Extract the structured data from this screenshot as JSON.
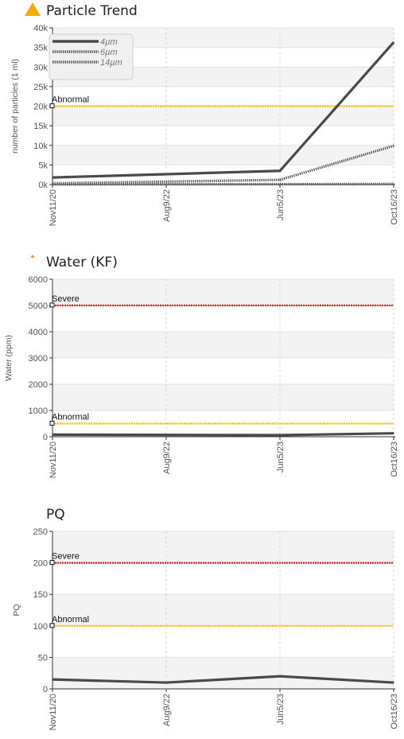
{
  "colors": {
    "abnormal": "#f5c400",
    "severe": "#e0201b",
    "series": "#4a4a4a",
    "band": "#f3f3f3",
    "warning": "#f2ad00"
  },
  "chart_data": [
    {
      "type": "line",
      "title": "Particle Trend",
      "title_icon": "warning-triangle-icon",
      "ylabel": "number of particles (1 ml)",
      "ylim": [
        0,
        40000
      ],
      "yticks": [
        0,
        5000,
        10000,
        15000,
        20000,
        25000,
        30000,
        35000,
        40000
      ],
      "ytick_labels": [
        "0k",
        "5k",
        "10k",
        "15k",
        "20k",
        "25k",
        "30k",
        "35k",
        "40k"
      ],
      "categories": [
        "Nov11/20",
        "Aug9/22",
        "Jun5/23",
        "Oct16/23"
      ],
      "x": [
        "2020-11-11",
        "2022-08-09",
        "2023-06-05",
        "2023-10-16"
      ],
      "series": [
        {
          "name": "4µm",
          "style": "solid",
          "points": [
            [
              "2020-11-11",
              1800
            ],
            [
              "2023-06-05",
              3500
            ],
            [
              "2023-10-16",
              36300
            ]
          ]
        },
        {
          "name": "6µm",
          "style": "dotted",
          "points": [
            [
              "2020-11-11",
              300
            ],
            [
              "2023-06-05",
              1200
            ],
            [
              "2023-10-16",
              9900
            ]
          ]
        },
        {
          "name": "14µm",
          "style": "dotted",
          "points": [
            [
              "2020-11-11",
              50
            ],
            [
              "2023-06-05",
              100
            ],
            [
              "2023-10-16",
              150
            ]
          ]
        }
      ],
      "thresholds": [
        {
          "label": "Abnormal",
          "value": 20000,
          "level": "abnormal"
        }
      ],
      "legend": "top-left",
      "grid": true
    },
    {
      "type": "line",
      "title": "Water (KF)",
      "ylabel": "Water (ppm)",
      "ylim": [
        0,
        6000
      ],
      "yticks": [
        0,
        1000,
        2000,
        3000,
        4000,
        5000,
        6000
      ],
      "ytick_labels": [
        "0",
        "1000",
        "2000",
        "3000",
        "4000",
        "5000",
        "6000"
      ],
      "categories": [
        "Nov11/20",
        "Aug9/22",
        "Jun5/23",
        "Oct16/23"
      ],
      "x": [
        "2020-11-11",
        "2022-08-09",
        "2023-06-05",
        "2023-10-16"
      ],
      "series": [
        {
          "style": "solid",
          "points": [
            [
              "2020-11-11",
              80
            ],
            [
              "2023-06-05",
              60
            ],
            [
              "2023-10-16",
              130
            ]
          ]
        }
      ],
      "thresholds": [
        {
          "label": "Severe",
          "value": 5000,
          "level": "severe"
        },
        {
          "label": "Abnormal",
          "value": 500,
          "level": "abnormal"
        }
      ],
      "grid": true
    },
    {
      "type": "line",
      "title": "PQ",
      "ylabel": "PQ",
      "ylim": [
        0,
        250
      ],
      "yticks": [
        0,
        50,
        100,
        150,
        200,
        250
      ],
      "ytick_labels": [
        "0",
        "50",
        "100",
        "150",
        "200",
        "250"
      ],
      "categories": [
        "Nov11/20",
        "Aug9/22",
        "Jun5/23",
        "Oct16/23"
      ],
      "x": [
        "2020-11-11",
        "2022-08-09",
        "2023-06-05",
        "2023-10-16"
      ],
      "series": [
        {
          "style": "solid",
          "points": [
            [
              "2020-11-11",
              15
            ],
            [
              "2022-08-09",
              10
            ],
            [
              "2023-06-05",
              20
            ],
            [
              "2023-10-16",
              10
            ]
          ]
        }
      ],
      "thresholds": [
        {
          "label": "Severe",
          "value": 200,
          "level": "severe"
        },
        {
          "label": "Abnormal",
          "value": 100,
          "level": "abnormal"
        }
      ],
      "grid": true
    }
  ]
}
